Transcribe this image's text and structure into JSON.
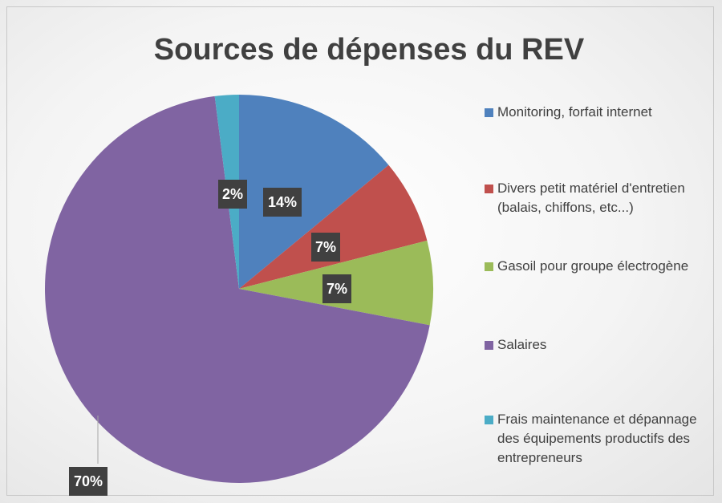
{
  "chart_data": {
    "type": "pie",
    "title": "Sources de dépenses du REV",
    "categories": [
      "Monitoring, forfait internet",
      "Divers petit matériel d'entretien (balais, chiffons, etc...)",
      "Gasoil pour groupe électrogène",
      "Salaires",
      "Frais maintenance et dépannage des équipements productifs des entrepreneurs"
    ],
    "values": [
      14,
      7,
      7,
      70,
      2
    ],
    "value_labels": [
      "14%",
      "7%",
      "7%",
      "70%",
      "2%"
    ],
    "colors": [
      "#4f81bd",
      "#c0504d",
      "#9bbb59",
      "#8064a2",
      "#4bacc6"
    ],
    "legend": "right"
  }
}
